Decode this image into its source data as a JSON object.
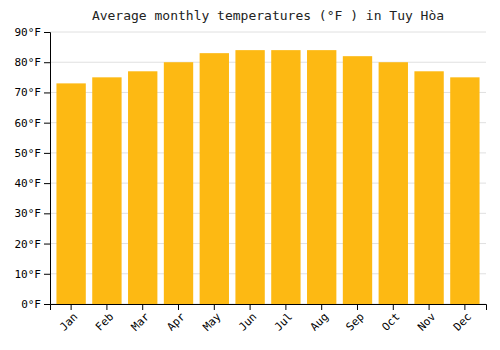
{
  "chart_data": {
    "type": "bar",
    "title": "Average monthly temperatures (°F ) in Tuy Hòa",
    "categories": [
      "Jan",
      "Feb",
      "Mar",
      "Apr",
      "May",
      "Jun",
      "Jul",
      "Aug",
      "Sep",
      "Oct",
      "Nov",
      "Dec"
    ],
    "values": [
      73,
      75,
      77,
      80,
      83,
      84,
      84,
      84,
      82,
      80,
      77,
      75
    ],
    "color": "#FDB913",
    "ylim": [
      0,
      90
    ],
    "yticks": [
      {
        "value": 0,
        "label": "0°F"
      },
      {
        "value": 10,
        "label": "10°F"
      },
      {
        "value": 20,
        "label": "20°F"
      },
      {
        "value": 30,
        "label": "30°F"
      },
      {
        "value": 40,
        "label": "40°F"
      },
      {
        "value": 50,
        "label": "50°F"
      },
      {
        "value": 60,
        "label": "60°F"
      },
      {
        "value": 70,
        "label": "70°F"
      },
      {
        "value": 80,
        "label": "80°F"
      },
      {
        "value": 90,
        "label": "90°F"
      }
    ],
    "grid": true
  }
}
